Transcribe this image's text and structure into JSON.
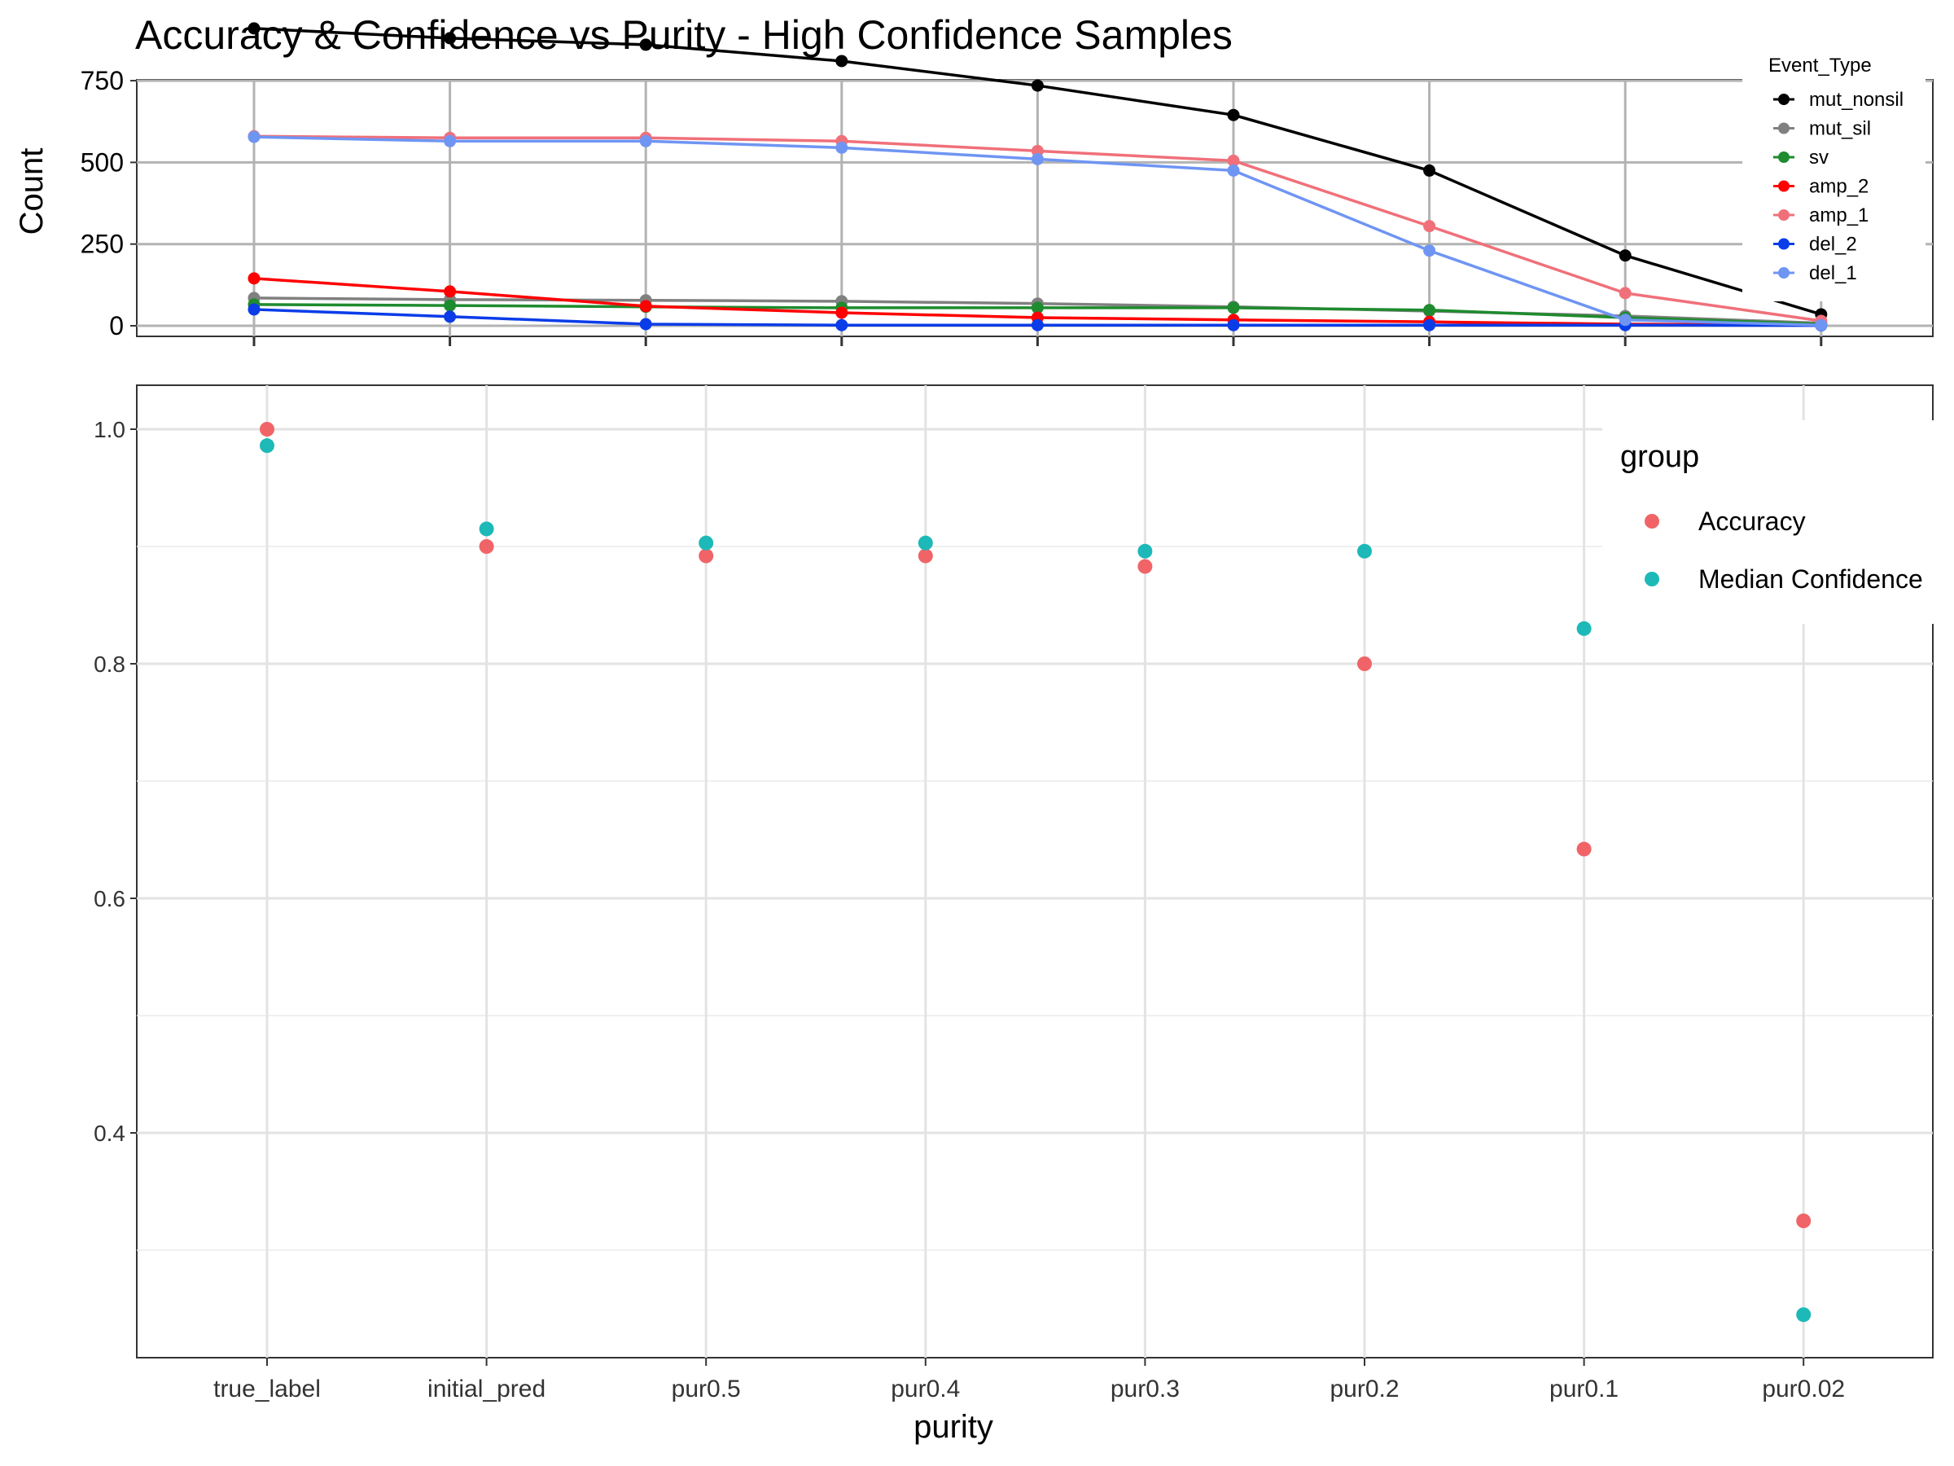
{
  "title": "Accuracy & Confidence vs Purity - High Confidence Samples",
  "colors": {
    "mut_nonsil": "#000000",
    "mut_sil": "#808080",
    "sv": "#1E8B2E",
    "amp_2": "#FF0000",
    "amp_1": "#F0707A",
    "del_2": "#0A3CE8",
    "del_1": "#6F95F3",
    "Accuracy": "#F06467",
    "Median Confidence": "#1DB9B8"
  },
  "chart_data": [
    {
      "type": "line",
      "title": "",
      "xlabel": "",
      "ylabel": "Count",
      "ylim": [
        0,
        920
      ],
      "yticks": [
        0,
        250,
        500,
        750
      ],
      "grid": true,
      "legend": {
        "title": "Event_Type",
        "position": "top-right"
      },
      "x": [
        1,
        2,
        3,
        4,
        5,
        6,
        7,
        8,
        9
      ],
      "series": [
        {
          "name": "mut_nonsil",
          "values": [
            910,
            880,
            860,
            810,
            735,
            645,
            475,
            215,
            35
          ]
        },
        {
          "name": "mut_sil",
          "values": [
            85,
            80,
            78,
            75,
            68,
            58,
            45,
            30,
            8
          ]
        },
        {
          "name": "sv",
          "values": [
            65,
            62,
            58,
            55,
            55,
            55,
            48,
            25,
            5
          ]
        },
        {
          "name": "amp_2",
          "values": [
            145,
            105,
            60,
            40,
            25,
            18,
            12,
            5,
            2
          ]
        },
        {
          "name": "amp_1",
          "values": [
            580,
            575,
            575,
            565,
            535,
            505,
            305,
            100,
            15
          ]
        },
        {
          "name": "del_2",
          "values": [
            50,
            28,
            5,
            2,
            2,
            2,
            2,
            2,
            1
          ]
        },
        {
          "name": "del_1",
          "values": [
            578,
            565,
            565,
            545,
            510,
            475,
            230,
            18,
            2
          ]
        }
      ]
    },
    {
      "type": "scatter",
      "title": "",
      "xlabel": "purity",
      "ylabel": "",
      "ylim": [
        0.22,
        1.04
      ],
      "yticks": [
        0.4,
        0.6,
        0.8,
        1.0
      ],
      "ytick_labels": [
        "0.4",
        "0.6",
        "0.8",
        "1.0"
      ],
      "grid": true,
      "legend": {
        "title": "group",
        "position": "top-right"
      },
      "categories": [
        "true_label",
        "initial_pred",
        "pur0.5",
        "pur0.4",
        "pur0.3",
        "pur0.2",
        "pur0.1",
        "pur0.02"
      ],
      "series": [
        {
          "name": "Accuracy",
          "values": [
            1.0,
            0.9,
            0.892,
            0.892,
            0.883,
            0.8,
            0.642,
            0.325
          ]
        },
        {
          "name": "Median Confidence",
          "values": [
            0.986,
            0.915,
            0.903,
            0.903,
            0.896,
            0.896,
            0.83,
            0.245
          ]
        }
      ]
    }
  ]
}
